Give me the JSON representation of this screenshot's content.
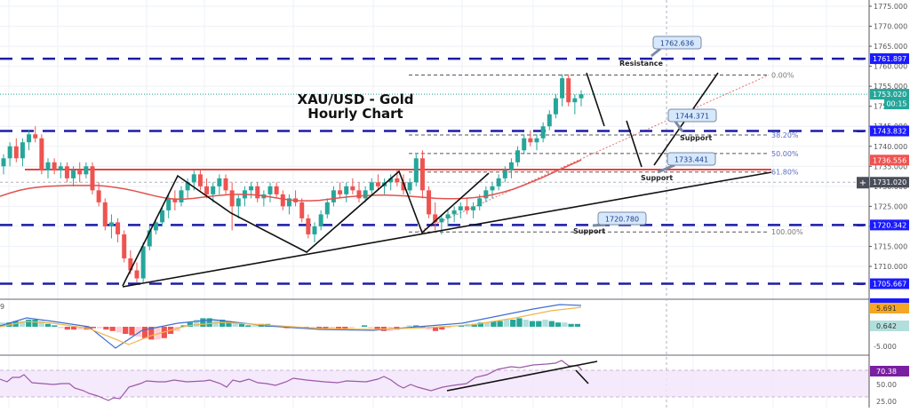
{
  "chart_data": {
    "type": "candlestick",
    "title": "XAU/USD - Gold Hourly Chart",
    "title_lines": [
      "XAU/USD - Gold",
      "Hourly Chart"
    ],
    "symbol": "XAU/USD",
    "timeframe": "1H",
    "price_axis": {
      "ticks": [
        1775,
        1770,
        1765,
        1760,
        1755,
        1750,
        1745,
        1740,
        1735,
        1730,
        1725,
        1720,
        1715,
        1710
      ],
      "tick_labels": [
        "1775.000",
        "1770.000",
        "1765.000",
        "1760.000",
        "1755.000",
        "1750.000",
        "1745.000",
        "1740.000",
        "1735.000",
        "1730.000",
        "1725.000",
        "1720.000",
        "1715.000",
        "1710.000"
      ],
      "range": [
        1703,
        1777
      ]
    },
    "price_badges": [
      {
        "label": "1761.897",
        "value": 1761.897,
        "color": "#1a1aff",
        "kind": "resistance-line"
      },
      {
        "label": "1753.020",
        "value": 1753.02,
        "color": "#26a69a",
        "kind": "last-price"
      },
      {
        "label": "00:15",
        "value": 1750.8,
        "color": "#26a69a",
        "kind": "countdown"
      },
      {
        "label": "1743.832",
        "value": 1743.832,
        "color": "#1a1aff",
        "kind": "support-line"
      },
      {
        "label": "1736.556",
        "value": 1736.556,
        "color": "#ef5350",
        "kind": "moving-average"
      },
      {
        "label": "1731.020",
        "value": 1731.02,
        "color": "#4a4e5a",
        "kind": "crosshair"
      },
      {
        "label": "1720.342",
        "value": 1720.342,
        "color": "#1a1aff",
        "kind": "support-line"
      },
      {
        "label": "1705.667",
        "value": 1705.667,
        "color": "#1a1aff",
        "kind": "support-line"
      }
    ],
    "horizontal_levels": [
      {
        "value": 1761.897,
        "style": "dashed-blue"
      },
      {
        "value": 1743.832,
        "style": "dashed-blue"
      },
      {
        "value": 1720.342,
        "style": "dashed-blue"
      },
      {
        "value": 1705.667,
        "style": "dashed-blue"
      },
      {
        "value": 1734.2,
        "style": "solid-red"
      }
    ],
    "annotations": [
      {
        "text": "1762.636",
        "type": "callout"
      },
      {
        "text": "Resistance",
        "type": "label"
      },
      {
        "text": "1744.371",
        "type": "callout"
      },
      {
        "text": "Support",
        "type": "label"
      },
      {
        "text": "1733.441",
        "type": "callout"
      },
      {
        "text": "Support",
        "type": "label"
      },
      {
        "text": "1720.780",
        "type": "callout"
      },
      {
        "text": "Support",
        "type": "label"
      }
    ],
    "fibonacci": {
      "high": 1757.8,
      "low": 1718.6,
      "levels": [
        {
          "label": "0.00%",
          "ratio": 0.0
        },
        {
          "label": "38.20%",
          "ratio": 0.382
        },
        {
          "label": "50.00%",
          "ratio": 0.5
        },
        {
          "label": "61.80%",
          "ratio": 0.618
        },
        {
          "label": "100.00%",
          "ratio": 1.0
        }
      ]
    },
    "candles": [
      [
        1735,
        1738,
        1733,
        1737
      ],
      [
        1737,
        1741,
        1735,
        1740
      ],
      [
        1740,
        1742,
        1736,
        1737
      ],
      [
        1737,
        1742,
        1735,
        1741
      ],
      [
        1741,
        1744,
        1739,
        1743
      ],
      [
        1743,
        1745,
        1741,
        1742
      ],
      [
        1742,
        1743,
        1733,
        1734
      ],
      [
        1734,
        1737,
        1732,
        1736
      ],
      [
        1736,
        1737,
        1733,
        1734
      ],
      [
        1734,
        1736,
        1732,
        1735
      ],
      [
        1735,
        1736,
        1731,
        1732
      ],
      [
        1732,
        1735,
        1730,
        1734
      ],
      [
        1734,
        1736,
        1731,
        1733
      ],
      [
        1733,
        1736,
        1732,
        1735
      ],
      [
        1735,
        1736,
        1728,
        1729
      ],
      [
        1729,
        1731,
        1725,
        1726
      ],
      [
        1726,
        1727,
        1719,
        1720
      ],
      [
        1720,
        1723,
        1717,
        1721
      ],
      [
        1721,
        1722,
        1716,
        1718
      ],
      [
        1718,
        1719,
        1711,
        1712
      ],
      [
        1712,
        1714,
        1708,
        1709
      ],
      [
        1709,
        1711,
        1706,
        1707
      ],
      [
        1707,
        1716,
        1706,
        1715
      ],
      [
        1715,
        1720,
        1714,
        1719
      ],
      [
        1719,
        1722,
        1718,
        1721
      ],
      [
        1721,
        1725,
        1720,
        1724
      ],
      [
        1724,
        1728,
        1722,
        1727
      ],
      [
        1727,
        1729,
        1724,
        1726
      ],
      [
        1726,
        1730,
        1725,
        1729
      ],
      [
        1729,
        1732,
        1727,
        1731
      ],
      [
        1731,
        1734,
        1729,
        1733
      ],
      [
        1733,
        1734,
        1729,
        1730
      ],
      [
        1730,
        1732,
        1727,
        1728
      ],
      [
        1728,
        1731,
        1726,
        1730
      ],
      [
        1730,
        1733,
        1728,
        1732
      ],
      [
        1732,
        1733,
        1728,
        1729
      ],
      [
        1729,
        1731,
        1719,
        1725
      ],
      [
        1725,
        1728,
        1722,
        1727
      ],
      [
        1727,
        1730,
        1725,
        1729
      ],
      [
        1729,
        1731,
        1727,
        1730
      ],
      [
        1730,
        1731,
        1726,
        1727
      ],
      [
        1727,
        1729,
        1725,
        1728
      ],
      [
        1728,
        1731,
        1726,
        1730
      ],
      [
        1730,
        1731,
        1727,
        1728
      ],
      [
        1728,
        1729,
        1724,
        1725
      ],
      [
        1725,
        1728,
        1723,
        1727
      ],
      [
        1727,
        1729,
        1725,
        1726
      ],
      [
        1726,
        1727,
        1721,
        1722
      ],
      [
        1722,
        1723,
        1717,
        1718
      ],
      [
        1718,
        1721,
        1716,
        1720
      ],
      [
        1720,
        1724,
        1719,
        1723
      ],
      [
        1723,
        1727,
        1722,
        1726
      ],
      [
        1726,
        1730,
        1725,
        1729
      ],
      [
        1729,
        1731,
        1727,
        1728
      ],
      [
        1728,
        1731,
        1726,
        1730
      ],
      [
        1730,
        1732,
        1728,
        1729
      ],
      [
        1729,
        1731,
        1726,
        1727
      ],
      [
        1727,
        1730,
        1726,
        1729
      ],
      [
        1729,
        1732,
        1728,
        1731
      ],
      [
        1731,
        1733,
        1729,
        1730
      ],
      [
        1730,
        1732,
        1728,
        1731
      ],
      [
        1731,
        1733,
        1729,
        1732
      ],
      [
        1732,
        1734,
        1730,
        1731
      ],
      [
        1731,
        1733,
        1728,
        1729
      ],
      [
        1729,
        1732,
        1728,
        1731
      ],
      [
        1731,
        1738,
        1730,
        1737
      ],
      [
        1737,
        1739,
        1727,
        1729
      ],
      [
        1729,
        1730,
        1722,
        1723
      ],
      [
        1723,
        1726,
        1719,
        1721
      ],
      [
        1721,
        1723,
        1718,
        1722
      ],
      [
        1722,
        1724,
        1720,
        1723
      ],
      [
        1723,
        1725,
        1721,
        1724
      ],
      [
        1724,
        1726,
        1722,
        1725
      ],
      [
        1725,
        1727,
        1723,
        1724
      ],
      [
        1724,
        1726,
        1722,
        1725
      ],
      [
        1725,
        1728,
        1724,
        1727
      ],
      [
        1727,
        1730,
        1726,
        1729
      ],
      [
        1729,
        1731,
        1727,
        1730
      ],
      [
        1730,
        1733,
        1729,
        1732
      ],
      [
        1732,
        1735,
        1731,
        1734
      ],
      [
        1734,
        1737,
        1732,
        1736
      ],
      [
        1736,
        1740,
        1735,
        1739
      ],
      [
        1739,
        1743,
        1738,
        1742
      ],
      [
        1742,
        1744,
        1740,
        1741
      ],
      [
        1741,
        1743,
        1739,
        1742
      ],
      [
        1742,
        1746,
        1741,
        1745
      ],
      [
        1745,
        1749,
        1744,
        1748
      ],
      [
        1748,
        1753,
        1747,
        1752
      ],
      [
        1752,
        1758,
        1750,
        1757
      ],
      [
        1757,
        1758,
        1750,
        1751
      ],
      [
        1751,
        1753,
        1748,
        1752
      ],
      [
        1752,
        1754,
        1750,
        1753
      ]
    ],
    "sma": [
      1727.5,
      1728.3,
      1729.0,
      1729.5,
      1729.8,
      1730.0,
      1730.1,
      1730.2,
      1730.2,
      1730.2,
      1730.2,
      1730.0,
      1729.7,
      1729.3,
      1728.8,
      1728.2,
      1727.6,
      1727.1,
      1726.8,
      1726.8,
      1727.0,
      1727.3,
      1727.6,
      1727.8,
      1728.0,
      1728.0,
      1727.9,
      1727.7,
      1727.3,
      1726.9,
      1726.6,
      1726.4,
      1726.4,
      1726.5,
      1726.8,
      1727.1,
      1727.4,
      1727.6,
      1727.7,
      1727.8,
      1727.8,
      1727.7,
      1727.6,
      1727.4,
      1727.2,
      1727.0,
      1726.9,
      1726.9,
      1727.0,
      1727.2,
      1727.5,
      1728.0,
      1728.6,
      1729.3,
      1730.2,
      1731.2,
      1732.2,
      1733.3,
      1734.4,
      1735.5,
      1736.556
    ],
    "macd": {
      "label": "9",
      "axis_ticks": [
        "5.691",
        "0.642",
        "-5.000"
      ],
      "badges": [
        {
          "label": "5.691",
          "color": "#f5a623"
        },
        {
          "label": "0.642",
          "color": "#b2dfdb"
        }
      ]
    },
    "rsi": {
      "axis_ticks": [
        "70.38",
        "50.00",
        "25.00"
      ],
      "badges": [
        {
          "label": "70.38",
          "color": "#7b1fa2"
        }
      ],
      "band": [
        30,
        70
      ]
    }
  },
  "ui": {
    "crosshair_button": "+",
    "countdown": "00:15"
  }
}
